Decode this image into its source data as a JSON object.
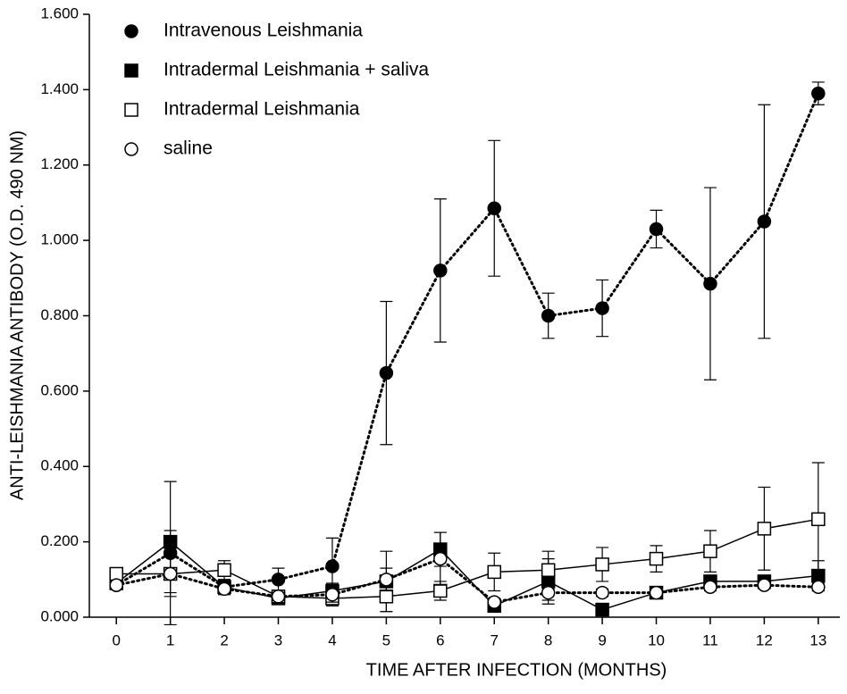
{
  "chart_data": {
    "type": "line",
    "x_label": "TIME AFTER INFECTION (MONTHS)",
    "y_label": "ANTI-LEISHMANIA ANTIBODY (O.D. 490 NM)",
    "x": [
      0,
      1,
      2,
      3,
      4,
      5,
      6,
      7,
      8,
      9,
      10,
      11,
      12,
      13
    ],
    "xlim": [
      -0.5,
      13.4
    ],
    "xticks": [
      0,
      1,
      2,
      3,
      4,
      5,
      6,
      7,
      8,
      9,
      10,
      11,
      12,
      13
    ],
    "ylim": [
      0,
      1.6
    ],
    "yticks": [
      {
        "value": 0,
        "label": "0.000"
      },
      {
        "value": 0.2,
        "label": "0.200"
      },
      {
        "value": 0.4,
        "label": "0.400"
      },
      {
        "value": 0.6,
        "label": "0.600"
      },
      {
        "value": 0.8,
        "label": "0.800"
      },
      {
        "value": 1.0,
        "label": "1.000"
      },
      {
        "value": 1.2,
        "label": "1.200"
      },
      {
        "value": 1.4,
        "label": "1.400"
      },
      {
        "value": 1.6,
        "label": "1.600"
      }
    ],
    "legend": "upper-left",
    "series": [
      {
        "name": "Intravenous Leishmania",
        "color": "#000000",
        "marker": "circle-filled",
        "line": "dotted",
        "values": [
          0.085,
          0.17,
          0.08,
          0.1,
          0.135,
          0.648,
          0.92,
          1.085,
          0.8,
          0.82,
          1.03,
          0.885,
          1.05,
          1.39
        ],
        "errors": [
          0.01,
          0.19,
          0.02,
          0.03,
          0.075,
          0.19,
          0.19,
          0.18,
          0.06,
          0.075,
          0.05,
          0.255,
          0.31,
          0.03
        ]
      },
      {
        "name": "Intradermal Leishmania + saliva",
        "color": "#000000",
        "marker": "square-filled",
        "line": "solid",
        "values": [
          0.09,
          0.2,
          0.08,
          0.05,
          0.07,
          0.095,
          0.18,
          0.03,
          0.095,
          0.02,
          0.065,
          0.095,
          0.095,
          0.11
        ],
        "errors": [
          0.01,
          0.03,
          0.015,
          0.01,
          0.02,
          0.08,
          0.045,
          0.01,
          0.06,
          0.01,
          0.01,
          0.01,
          0.01,
          0.04
        ]
      },
      {
        "name": "Intradermal Leishmania",
        "color": "#000000",
        "marker": "square-open",
        "line": "solid",
        "values": [
          0.115,
          0.115,
          0.125,
          0.055,
          0.05,
          0.055,
          0.07,
          0.12,
          0.125,
          0.14,
          0.155,
          0.175,
          0.235,
          0.26
        ],
        "errors": [
          0.01,
          0.06,
          0.025,
          0.01,
          0.02,
          0.04,
          0.025,
          0.05,
          0.05,
          0.045,
          0.035,
          0.055,
          0.11,
          0.15
        ]
      },
      {
        "name": "saline",
        "color": "#000000",
        "marker": "circle-open",
        "line": "dotted",
        "values": [
          0.085,
          0.115,
          0.075,
          0.055,
          0.06,
          0.1,
          0.155,
          0.04,
          0.065,
          0.065,
          0.065,
          0.08,
          0.085,
          0.08
        ],
        "errors": [
          0.01,
          0.05,
          0.015,
          0.01,
          0.02,
          0.03,
          0.07,
          0.01,
          0.02,
          0.01,
          0.01,
          0.01,
          0.01,
          0.01
        ]
      }
    ]
  }
}
